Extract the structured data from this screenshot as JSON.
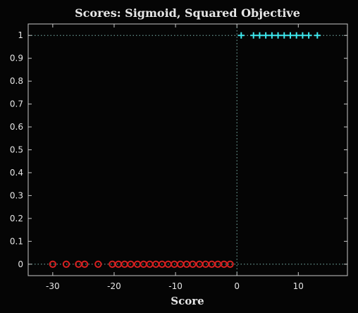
{
  "chart_data": {
    "type": "scatter",
    "title": "Scores: Sigmoid, Squared Objective",
    "xlabel": "Score",
    "ylabel": "",
    "xlim": [
      -34,
      18
    ],
    "ylim": [
      -0.05,
      1.05
    ],
    "xticks": [
      -30,
      -20,
      -10,
      0,
      10
    ],
    "yticks": [
      0,
      0.1,
      0.2,
      0.3,
      0.4,
      0.5,
      0.6,
      0.7,
      0.8,
      0.9,
      1
    ],
    "grid": false,
    "background": "#050505",
    "axis_color": "#c8c8c8",
    "reference_lines": [
      {
        "orientation": "vertical",
        "value": 0,
        "color": "#7fb8b0",
        "style": "dotted"
      },
      {
        "orientation": "horizontal",
        "value": 0,
        "color": "#7fb8b0",
        "style": "dotted"
      },
      {
        "orientation": "horizontal",
        "value": 1,
        "color": "#7fb8b0",
        "style": "dotted"
      }
    ],
    "series": [
      {
        "marker": "circle",
        "color": "#d42020",
        "points": [
          [
            -30,
            0
          ],
          [
            -27.8,
            0
          ],
          [
            -25.8,
            0
          ],
          [
            -24.8,
            0
          ],
          [
            -22.6,
            0
          ],
          [
            -20.3,
            0
          ],
          [
            -19.3,
            0
          ],
          [
            -18.3,
            0
          ],
          [
            -17.3,
            0
          ],
          [
            -16.2,
            0
          ],
          [
            -15.2,
            0
          ],
          [
            -14.2,
            0
          ],
          [
            -13.2,
            0
          ],
          [
            -12.2,
            0
          ],
          [
            -11.2,
            0
          ],
          [
            -10.2,
            0
          ],
          [
            -9.2,
            0
          ],
          [
            -8.2,
            0
          ],
          [
            -7.2,
            0
          ],
          [
            -6.1,
            0
          ],
          [
            -5.1,
            0
          ],
          [
            -4.1,
            0
          ],
          [
            -3.1,
            0
          ],
          [
            -2.1,
            0
          ],
          [
            -1.1,
            0
          ]
        ]
      },
      {
        "marker": "plus",
        "color": "#3ee8ee",
        "points": [
          [
            0.7,
            1
          ],
          [
            2.7,
            1
          ],
          [
            3.7,
            1
          ],
          [
            4.7,
            1
          ],
          [
            5.7,
            1
          ],
          [
            6.7,
            1
          ],
          [
            7.7,
            1
          ],
          [
            8.7,
            1
          ],
          [
            9.7,
            1
          ],
          [
            10.7,
            1
          ],
          [
            11.7,
            1
          ],
          [
            13.1,
            1
          ]
        ]
      }
    ]
  }
}
